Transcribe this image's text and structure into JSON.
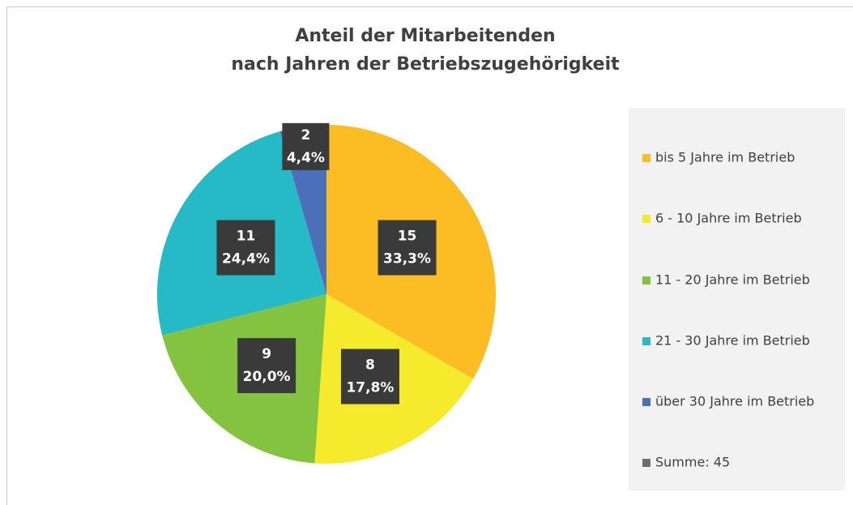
{
  "chart_data": {
    "type": "pie",
    "title": [
      "Anteil der Mitarbeitenden",
      "nach Jahren der Betriebszugehörigkeit"
    ],
    "categories": [
      "bis 5 Jahre im Betrieb",
      "6 - 10 Jahre im Betrieb",
      "11 - 20 Jahre im Betrieb",
      "21 - 30 Jahre im Betrieb",
      "über 30 Jahre im Betrieb"
    ],
    "values": [
      15,
      8,
      9,
      11,
      2
    ],
    "percentages": [
      33.3,
      17.8,
      20.0,
      24.4,
      4.4
    ],
    "percent_labels": [
      "33,3%",
      "17,8%",
      "20,0%",
      "24,4%",
      "4,4%"
    ],
    "colors": [
      "#fbbc24",
      "#f5eb2c",
      "#84c340",
      "#26bac6",
      "#4b6fb8"
    ],
    "total_label": "Summe: 45",
    "total_color": "#6d6d6d",
    "legend": "right"
  }
}
